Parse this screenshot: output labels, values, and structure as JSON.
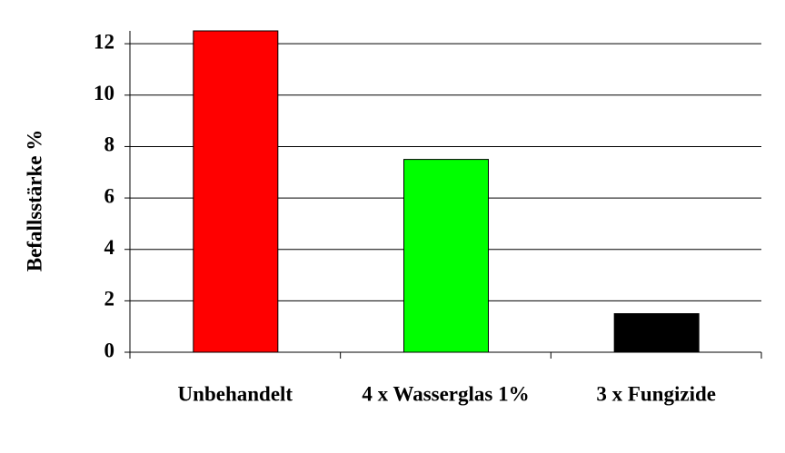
{
  "chart_data": {
    "type": "bar",
    "y_label": "Befallsstärke %",
    "categories": [
      "Unbehandelt",
      "4 x Wasserglas 1%",
      "3 x Fungizide"
    ],
    "values": [
      12.5,
      7.5,
      1.5
    ],
    "colors": [
      "#ff0000",
      "#00ff00",
      "#000000"
    ],
    "ylim": [
      0,
      12.5
    ],
    "yticks": [
      0,
      2,
      4,
      6,
      8,
      10,
      12
    ],
    "grid": true
  }
}
